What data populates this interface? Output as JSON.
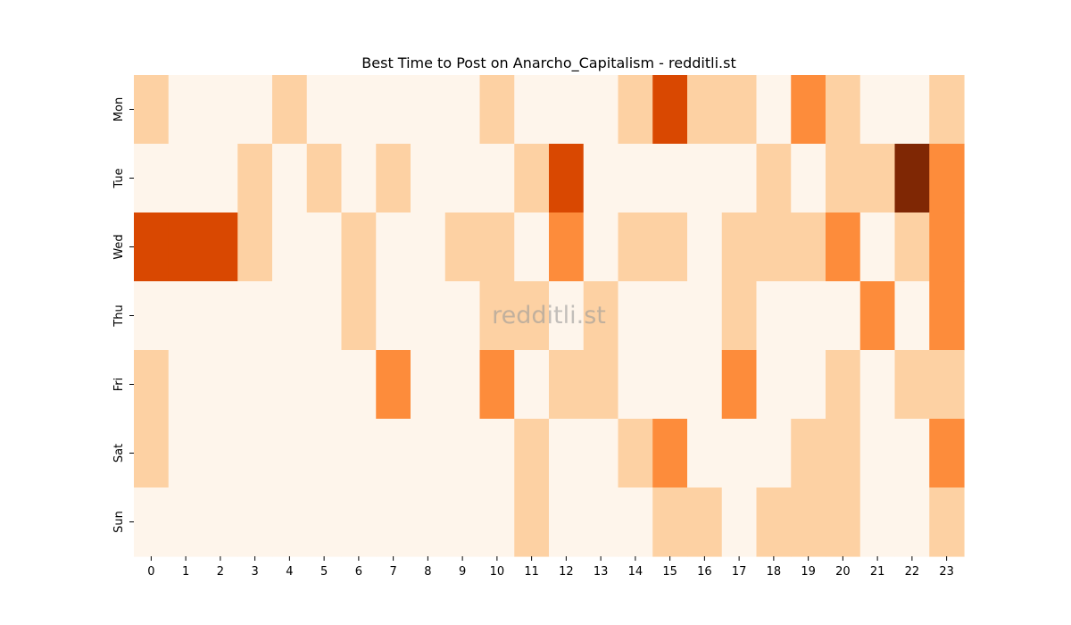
{
  "chart_data": {
    "type": "heatmap",
    "title": "Best Time to Post on Anarcho_Capitalism - redditli.st",
    "watermark": "redditli.st",
    "x_categories": [
      "0",
      "1",
      "2",
      "3",
      "4",
      "5",
      "6",
      "7",
      "8",
      "9",
      "10",
      "11",
      "12",
      "13",
      "14",
      "15",
      "16",
      "17",
      "18",
      "19",
      "20",
      "21",
      "22",
      "23"
    ],
    "y_categories": [
      "Mon",
      "Tue",
      "Wed",
      "Thu",
      "Fri",
      "Sat",
      "Sun"
    ],
    "values": [
      [
        1,
        0,
        0,
        0,
        1,
        0,
        0,
        0,
        0,
        0,
        1,
        0,
        0,
        0,
        1,
        3,
        1,
        1,
        0,
        2,
        1,
        0,
        0,
        1
      ],
      [
        0,
        0,
        0,
        1,
        0,
        1,
        0,
        1,
        0,
        0,
        0,
        1,
        3,
        0,
        0,
        0,
        0,
        0,
        1,
        0,
        1,
        1,
        4,
        2
      ],
      [
        3,
        3,
        3,
        1,
        0,
        0,
        1,
        0,
        0,
        1,
        1,
        0,
        2,
        0,
        1,
        1,
        0,
        1,
        1,
        1,
        2,
        0,
        1,
        2
      ],
      [
        0,
        0,
        0,
        0,
        0,
        0,
        1,
        0,
        0,
        0,
        1,
        1,
        0,
        1,
        0,
        0,
        0,
        1,
        0,
        0,
        0,
        2,
        0,
        2
      ],
      [
        1,
        0,
        0,
        0,
        0,
        0,
        0,
        2,
        0,
        0,
        2,
        0,
        1,
        1,
        0,
        0,
        0,
        2,
        0,
        0,
        1,
        0,
        1,
        1
      ],
      [
        1,
        0,
        0,
        0,
        0,
        0,
        0,
        0,
        0,
        0,
        0,
        1,
        0,
        0,
        1,
        2,
        0,
        0,
        0,
        1,
        1,
        0,
        0,
        2
      ],
      [
        0,
        0,
        0,
        0,
        0,
        0,
        0,
        0,
        0,
        0,
        0,
        1,
        0,
        0,
        0,
        1,
        1,
        0,
        1,
        1,
        1,
        0,
        0,
        1
      ]
    ],
    "value_range": [
      0,
      4
    ],
    "colormap": "Oranges",
    "colors": [
      "#fef5eb",
      "#fdd1a3",
      "#fd8c3b",
      "#d94801",
      "#7f2704"
    ],
    "grid": false,
    "legend": "none"
  }
}
